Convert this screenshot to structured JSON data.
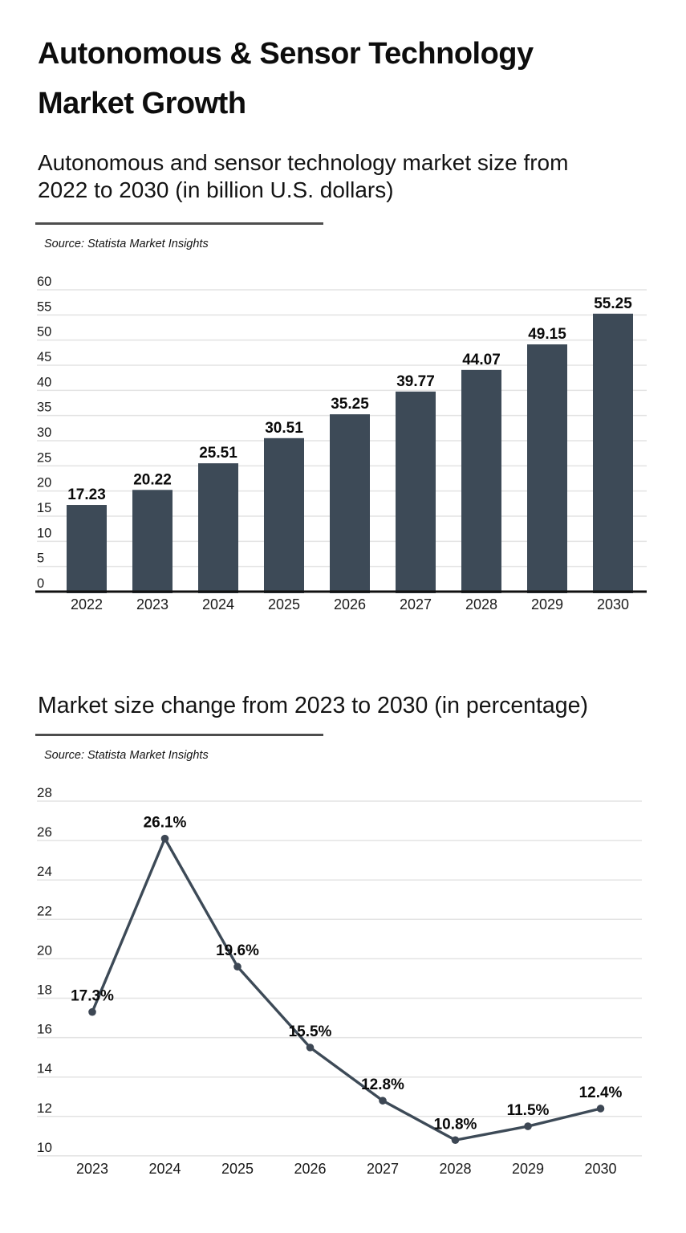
{
  "header": {
    "title_lines": [
      "Autonomous & Sensor Technology",
      "Market Growth"
    ]
  },
  "sections": [
    {
      "heading_lines": [
        "Autonomous and sensor technology market size from",
        "2022 to 2030 (in billion U.S. dollars)"
      ],
      "source": "Source: Statista Market Insights"
    },
    {
      "heading_lines": [
        "Market size change from 2023 to 2030 (in percentage)"
      ],
      "source": "Source: Statista Market Insights"
    }
  ],
  "colors": {
    "bar": "#3d4a57",
    "line": "#3d4a57",
    "dot": "#3d4754",
    "grid": "#e3e3e3",
    "axis": "#111111",
    "divider": "#4d4d4d",
    "tick_text": "#1a1a1a",
    "value_label_text": "#0a0a0a",
    "background": "#ffffff"
  },
  "chart_data": [
    {
      "type": "bar",
      "title": "Autonomous and sensor technology market size from 2022 to 2030 (in billion U.S. dollars)",
      "source": "Source: Statista Market Insights",
      "categories": [
        "2022",
        "2023",
        "2024",
        "2025",
        "2026",
        "2027",
        "2028",
        "2029",
        "2030"
      ],
      "values": [
        17.23,
        20.22,
        25.51,
        30.51,
        35.25,
        39.77,
        44.07,
        49.15,
        55.25
      ],
      "value_labels": [
        "17.23",
        "20.22",
        "25.51",
        "30.51",
        "35.25",
        "39.77",
        "44.07",
        "49.15",
        "55.25"
      ],
      "xlabel": "",
      "ylabel": "",
      "ylim": [
        0,
        60
      ],
      "ytick_step": 5,
      "grid": true,
      "legend": false
    },
    {
      "type": "line",
      "title": "Market size change from 2023 to 2030 (in percentage)",
      "source": "Source: Statista Market Insights",
      "categories": [
        "2023",
        "2024",
        "2025",
        "2026",
        "2027",
        "2028",
        "2029",
        "2030"
      ],
      "values": [
        17.3,
        26.1,
        19.6,
        15.5,
        12.8,
        10.8,
        11.5,
        12.4
      ],
      "value_labels": [
        "17.3%",
        "26.1%",
        "19.6%",
        "15.5%",
        "12.8%",
        "10.8%",
        "11.5%",
        "12.4%"
      ],
      "xlabel": "",
      "ylabel": "",
      "ylim": [
        10,
        28
      ],
      "ytick_step": 2,
      "grid": true,
      "legend": false
    }
  ]
}
